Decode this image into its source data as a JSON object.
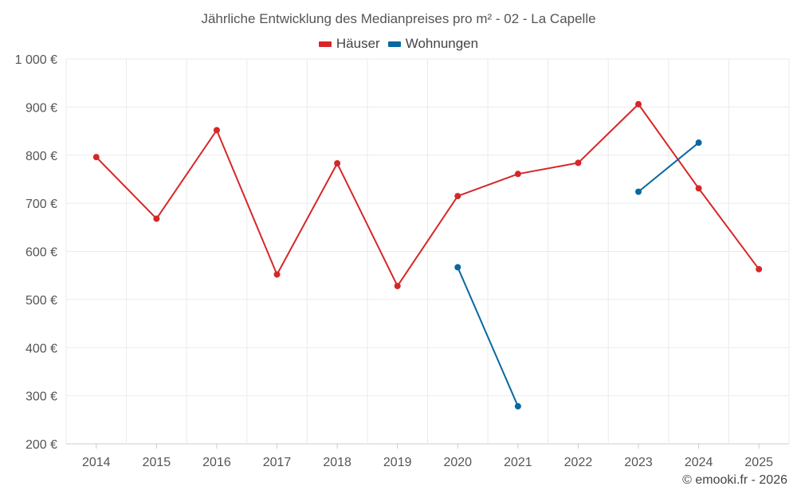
{
  "chart_data": {
    "type": "line",
    "title": "Jährliche Entwicklung des Medianpreises pro m² - 02 - La Capelle",
    "categories": [
      "2014",
      "2015",
      "2016",
      "2017",
      "2018",
      "2019",
      "2020",
      "2021",
      "2022",
      "2023",
      "2024",
      "2025"
    ],
    "series": [
      {
        "name": "Häuser",
        "color": "#d62728",
        "values": [
          796,
          668,
          852,
          552,
          783,
          528,
          715,
          761,
          784,
          906,
          731,
          563
        ]
      },
      {
        "name": "Wohnungen",
        "color": "#0868a0",
        "values": [
          null,
          null,
          null,
          null,
          null,
          null,
          567,
          278,
          null,
          724,
          826,
          null
        ]
      }
    ],
    "y_ticks": [
      "200 €",
      "300 €",
      "400 €",
      "500 €",
      "600 €",
      "700 €",
      "800 €",
      "900 €",
      "1 000 €"
    ],
    "ylim": [
      200,
      1000
    ],
    "xlabel": "",
    "ylabel": "",
    "grid": true,
    "legend_position": "top-center"
  },
  "credit": "© emooki.fr - 2026"
}
